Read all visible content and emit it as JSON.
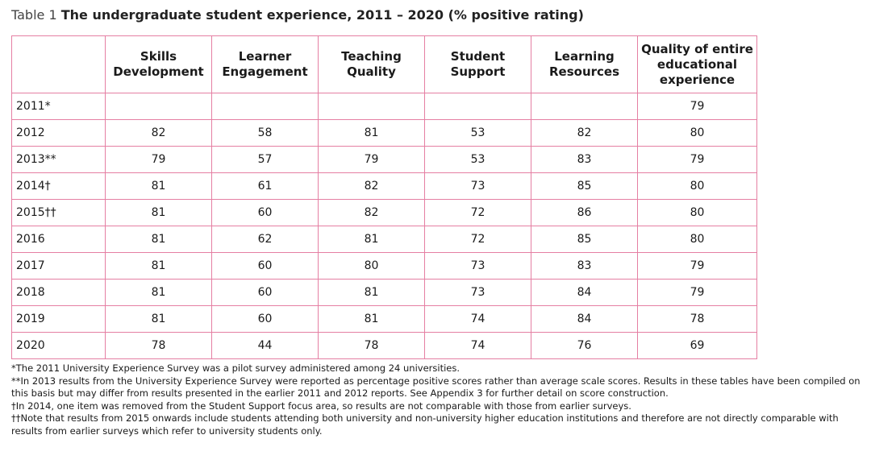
{
  "caption": {
    "label": "Table 1",
    "title": "The undergraduate student experience, 2011 – 2020 (% positive rating)"
  },
  "table": {
    "columns": [
      "",
      "Skills Development",
      "Learner Engagement",
      "Teaching Quality",
      "Student Support",
      "Learning Resources",
      "Quality of entire educational experience"
    ],
    "rows": [
      [
        "2011*",
        "",
        "",
        "",
        "",
        "",
        "79"
      ],
      [
        "2012",
        "82",
        "58",
        "81",
        "53",
        "82",
        "80"
      ],
      [
        "2013**",
        "79",
        "57",
        "79",
        "53",
        "83",
        "79"
      ],
      [
        "2014†",
        "81",
        "61",
        "82",
        "73",
        "85",
        "80"
      ],
      [
        "2015††",
        "81",
        "60",
        "82",
        "72",
        "86",
        "80"
      ],
      [
        "2016",
        "81",
        "62",
        "81",
        "72",
        "85",
        "80"
      ],
      [
        "2017",
        "81",
        "60",
        "80",
        "73",
        "83",
        "79"
      ],
      [
        "2018",
        "81",
        "60",
        "81",
        "73",
        "84",
        "79"
      ],
      [
        "2019",
        "81",
        "60",
        "81",
        "74",
        "84",
        "78"
      ],
      [
        "2020",
        "78",
        "44",
        "78",
        "74",
        "76",
        "69"
      ]
    ]
  },
  "footnotes": [
    "*The 2011 University Experience Survey was a pilot survey administered among 24 universities.",
    "**In 2013 results from the University Experience Survey were reported as percentage positive scores rather than average scale scores. Results in these tables have been compiled on this basis but may differ from results presented in the earlier 2011 and 2012 reports. See Appendix 3 for further detail on score construction.",
    "†In 2014, one item was removed from the Student Support focus area, so results are not comparable with those from earlier surveys.",
    "††Note that results from 2015 onwards include students attending both university and non-university higher education institutions and therefore are not directly comparable with results from earlier surveys which refer to university students only."
  ]
}
